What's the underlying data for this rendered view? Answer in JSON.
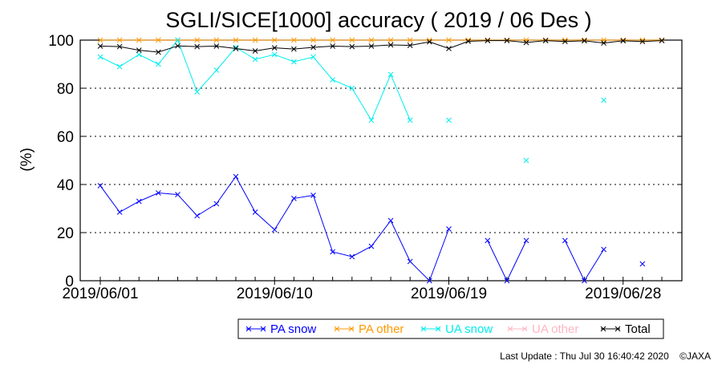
{
  "chart_data": {
    "type": "line",
    "title": "SGLI/SICE[1000] accuracy ( 2019 / 06 Des )",
    "xlabel": "",
    "ylabel": "(%)",
    "x_tick_labels": [
      "2019/06/01",
      "2019/06/10",
      "2019/06/19",
      "2019/06/28"
    ],
    "x_tick_days": [
      1,
      10,
      19,
      28
    ],
    "xlim": [
      1,
      30
    ],
    "ylim": [
      0,
      100
    ],
    "y_ticks": [
      0,
      20,
      40,
      60,
      80,
      100
    ],
    "grid": "horizontal dotted",
    "legend_position": "bottom",
    "x_days": [
      1,
      2,
      3,
      4,
      5,
      6,
      7,
      8,
      9,
      10,
      11,
      12,
      13,
      14,
      15,
      16,
      17,
      18,
      19,
      20,
      21,
      22,
      23,
      24,
      25,
      26,
      27,
      28,
      29,
      30
    ],
    "series": [
      {
        "name": "PA snow",
        "color": "#0000ff",
        "values": [
          39.5,
          28.5,
          33,
          36.5,
          35.8,
          27,
          32,
          43.3,
          28.5,
          21.2,
          34.2,
          35.5,
          12,
          10,
          14.3,
          25,
          8,
          0,
          21.5,
          null,
          16.7,
          0,
          16.7,
          null,
          16.7,
          0,
          13,
          null,
          7,
          null
        ]
      },
      {
        "name": "PA other",
        "color": "#ff9900",
        "values": [
          100,
          100,
          100,
          100,
          100,
          100,
          100,
          100,
          100,
          100,
          100,
          100,
          100,
          100,
          100,
          100,
          100,
          100,
          100,
          100,
          100,
          100,
          100,
          100,
          100,
          100,
          100,
          100,
          100,
          100
        ]
      },
      {
        "name": "UA snow",
        "color": "#00eeee",
        "values": [
          93,
          89,
          94,
          90,
          100,
          78.5,
          87.5,
          97,
          92,
          94,
          91,
          93,
          83.5,
          80,
          66.7,
          85.7,
          66.7,
          null,
          66.7,
          null,
          null,
          null,
          50,
          null,
          null,
          null,
          75,
          null,
          null,
          null
        ]
      },
      {
        "name": "UA other",
        "color": "#ffb6c1",
        "values": [
          null,
          null,
          null,
          null,
          null,
          null,
          null,
          null,
          null,
          null,
          null,
          null,
          null,
          null,
          null,
          null,
          null,
          null,
          null,
          null,
          null,
          null,
          null,
          null,
          null,
          null,
          null,
          null,
          null,
          null
        ]
      },
      {
        "name": "Total",
        "color": "#000000",
        "values": [
          97.5,
          97.3,
          95.8,
          95,
          97.6,
          97.3,
          97.5,
          96.5,
          95.5,
          96.8,
          96.3,
          97,
          97.5,
          97.3,
          97.5,
          98,
          97.8,
          99.3,
          96.5,
          99.5,
          99.8,
          99.8,
          99,
          99.8,
          99.4,
          99.7,
          98.8,
          99.7,
          99.4,
          99.8
        ]
      }
    ]
  },
  "footer": {
    "last_update": "Last Update : Thu Jul 30 16:40:42 2020",
    "copyright": "©JAXA"
  }
}
